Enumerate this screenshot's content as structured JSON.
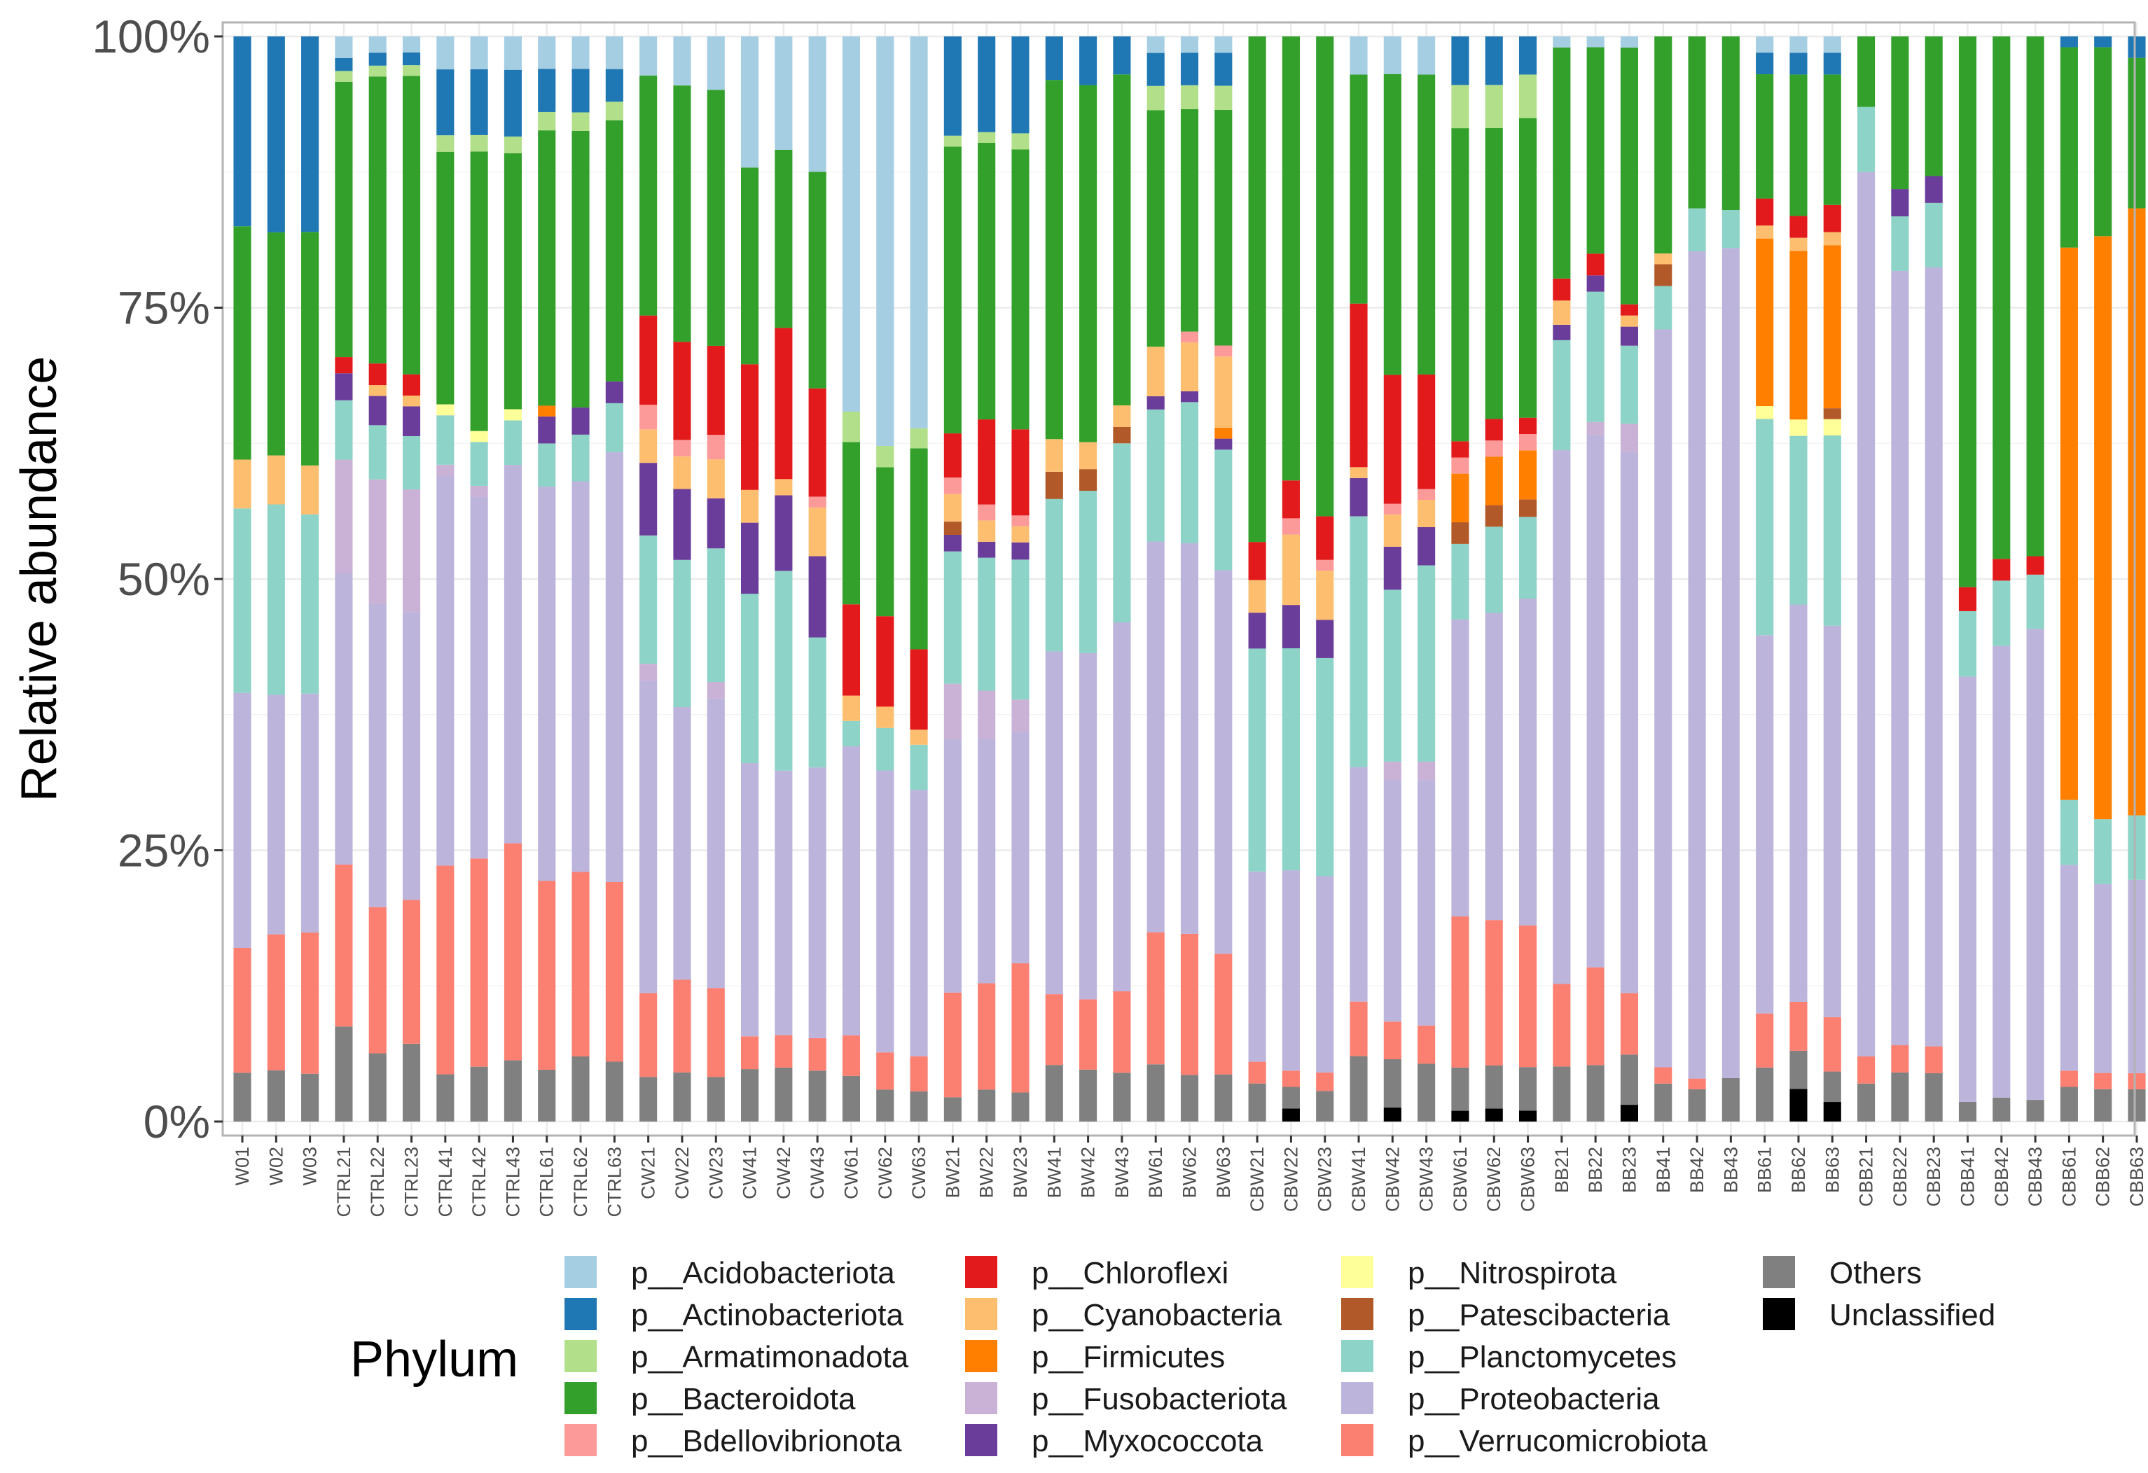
{
  "chart_data": {
    "type": "bar",
    "stacked": true,
    "title": "",
    "xlabel": "",
    "ylabel": "Relative abundance",
    "ylim": [
      0,
      1
    ],
    "yticks": [
      0,
      0.25,
      0.5,
      0.75,
      1.0
    ],
    "ytick_labels": [
      "0%",
      "25%",
      "50%",
      "75%",
      "100%"
    ],
    "legend_title": "Phylum",
    "legend_position": "bottom",
    "grid": true,
    "categories": [
      "W01",
      "W02",
      "W03",
      "CTRL21",
      "CTRL22",
      "CTRL23",
      "CTRL41",
      "CTRL42",
      "CTRL43",
      "CTRL61",
      "CTRL62",
      "CTRL63",
      "CW21",
      "CW22",
      "CW23",
      "CW41",
      "CW42",
      "CW43",
      "CW61",
      "CW62",
      "CW63",
      "BW21",
      "BW22",
      "BW23",
      "BW41",
      "BW42",
      "BW43",
      "BW61",
      "BW62",
      "BW63",
      "CBW21",
      "CBW22",
      "CBW23",
      "CBW41",
      "CBW42",
      "CBW43",
      "CBW61",
      "CBW62",
      "CBW63",
      "BB21",
      "BB22",
      "BB23",
      "BB41",
      "BB42",
      "BB43",
      "BB61",
      "BB62",
      "BB63",
      "CBB21",
      "CBB22",
      "CBB23",
      "CBB41",
      "CBB42",
      "CBB43",
      "CBB61",
      "CBB62",
      "CBB63"
    ],
    "stack_order": [
      "Unclassified",
      "Others",
      "p__Verrucomicrobiota",
      "p__Proteobacteria",
      "p__Fusobacteriota",
      "p__Planctomycetes",
      "p__Nitrospirota",
      "p__Myxococcota",
      "p__Patescibacteria",
      "p__Firmicutes",
      "p__Cyanobacteria",
      "p__Bdellovibrionota",
      "p__Chloroflexi",
      "p__Bacteroidota",
      "p__Armatimonadota",
      "p__Actinobacteriota",
      "p__Acidobacteriota"
    ],
    "series": [
      {
        "name": "p__Acidobacteriota",
        "color": "#a6cee3",
        "values": [
          0,
          0,
          0,
          0.02,
          0.015,
          0.015,
          0.03,
          0.03,
          0.03,
          0.03,
          0.03,
          0.03,
          0.035,
          0.045,
          0.048,
          0.12,
          0.105,
          0.125,
          0.37,
          0.385,
          0.39,
          0,
          0,
          0,
          0,
          0,
          0,
          0.015,
          0.015,
          0.015,
          0,
          0,
          0,
          0.035,
          0.035,
          0.035,
          0,
          0,
          0,
          0.01,
          0.01,
          0.01,
          0,
          0,
          0,
          0.015,
          0.015,
          0.015,
          0,
          0,
          0,
          0,
          0,
          0,
          0,
          0,
          0
        ]
      },
      {
        "name": "p__Actinobacteriota",
        "color": "#1f78b4",
        "values": [
          0.175,
          0.18,
          0.18,
          0.012,
          0.012,
          0.012,
          0.06,
          0.06,
          0.06,
          0.04,
          0.04,
          0.03,
          0,
          0,
          0,
          0,
          0,
          0,
          0,
          0,
          0,
          0.09,
          0.09,
          0.09,
          0.04,
          0.045,
          0.035,
          0.03,
          0.03,
          0.03,
          0,
          0,
          0,
          0,
          0,
          0,
          0.045,
          0.045,
          0.035,
          0,
          0,
          0,
          0,
          0,
          0,
          0.02,
          0.02,
          0.02,
          0,
          0,
          0,
          0,
          0,
          0,
          0.01,
          0.01,
          0.02
        ]
      },
      {
        "name": "p__Armatimonadota",
        "color": "#b2df8a",
        "values": [
          0,
          0,
          0,
          0.01,
          0.01,
          0.01,
          0.015,
          0.015,
          0.015,
          0.017,
          0.017,
          0.017,
          0,
          0,
          0,
          0,
          0,
          0,
          0.03,
          0.02,
          0.02,
          0.01,
          0.01,
          0.015,
          0,
          0,
          0,
          0.022,
          0.022,
          0.022,
          0,
          0,
          0,
          0,
          0,
          0,
          0.04,
          0.04,
          0.04,
          0,
          0,
          0,
          0,
          0,
          0,
          0,
          0,
          0,
          0,
          0,
          0,
          0,
          0,
          0,
          0,
          0,
          0
        ]
      },
      {
        "name": "p__Bacteroidota",
        "color": "#33a02c",
        "values": [
          0.215,
          0.205,
          0.215,
          0.255,
          0.265,
          0.28,
          0.23,
          0.255,
          0.23,
          0.255,
          0.255,
          0.24,
          0.215,
          0.235,
          0.23,
          0.18,
          0.165,
          0.2,
          0.16,
          0.14,
          0.2,
          0.26,
          0.26,
          0.26,
          0.33,
          0.33,
          0.305,
          0.215,
          0.205,
          0.215,
          0.465,
          0.41,
          0.44,
          0.21,
          0.28,
          0.275,
          0.29,
          0.27,
          0.275,
          0.21,
          0.19,
          0.23,
          0.2,
          0.16,
          0.16,
          0.115,
          0.13,
          0.12,
          0.065,
          0.14,
          0.13,
          0.505,
          0.48,
          0.48,
          0.185,
          0.175,
          0.14
        ]
      },
      {
        "name": "p__Bdellovibrionota",
        "color": "#fb9a99",
        "values": [
          0,
          0,
          0,
          0,
          0,
          0,
          0,
          0,
          0,
          0,
          0,
          0,
          0.022,
          0.015,
          0.022,
          0,
          0,
          0.01,
          0,
          0,
          0,
          0.015,
          0.015,
          0.01,
          0,
          0,
          0,
          0,
          0.01,
          0.01,
          0,
          0.015,
          0.01,
          0,
          0.01,
          0.01,
          0.015,
          0.015,
          0.015,
          0,
          0,
          0,
          0,
          0,
          0,
          0,
          0,
          0,
          0,
          0,
          0,
          0,
          0,
          0,
          0,
          0,
          0
        ]
      },
      {
        "name": "p__Chloroflexi",
        "color": "#e31a1c",
        "values": [
          0,
          0,
          0,
          0.015,
          0.02,
          0.02,
          0,
          0,
          0,
          0,
          0,
          0,
          0.08,
          0.09,
          0.08,
          0.115,
          0.14,
          0.1,
          0.09,
          0.085,
          0.08,
          0.04,
          0.08,
          0.08,
          0,
          0,
          0,
          0,
          0,
          0,
          0.035,
          0.035,
          0.04,
          0.15,
          0.12,
          0.105,
          0.015,
          0.02,
          0.015,
          0.02,
          0.02,
          0.01,
          0,
          0,
          0,
          0.025,
          0.02,
          0.025,
          0,
          0,
          0,
          0.022,
          0.02,
          0.017,
          0,
          0,
          0
        ]
      },
      {
        "name": "p__Cyanobacteria",
        "color": "#fdbf6f",
        "values": [
          0.045,
          0.045,
          0.045,
          0,
          0.01,
          0.01,
          0,
          0,
          0,
          0,
          0,
          0,
          0.03,
          0.03,
          0.035,
          0.03,
          0.015,
          0.045,
          0.025,
          0.02,
          0.015,
          0.025,
          0.02,
          0.015,
          0.03,
          0.025,
          0.02,
          0.045,
          0.045,
          0.065,
          0.03,
          0.065,
          0.045,
          0.01,
          0.03,
          0.025,
          0,
          0,
          0,
          0.022,
          0,
          0.01,
          0.01,
          0,
          0,
          0.012,
          0.012,
          0.012,
          0,
          0,
          0,
          0,
          0,
          0,
          0,
          0,
          0
        ]
      },
      {
        "name": "p__Firmicutes",
        "color": "#ff7f00",
        "values": [
          0,
          0,
          0,
          0,
          0,
          0,
          0,
          0,
          0,
          0.01,
          0,
          0,
          0,
          0,
          0,
          0,
          0,
          0,
          0,
          0,
          0,
          0,
          0,
          0,
          0,
          0,
          0,
          0,
          0,
          0.01,
          0,
          0,
          0,
          0,
          0,
          0,
          0.045,
          0.045,
          0.045,
          0,
          0,
          0,
          0,
          0,
          0,
          0.155,
          0.155,
          0.15,
          0,
          0,
          0,
          0,
          0,
          0,
          0.51,
          0.54,
          0.565
        ]
      },
      {
        "name": "p__Patescibacteria",
        "color": "#b15928",
        "values": [
          0,
          0,
          0,
          0,
          0,
          0,
          0,
          0,
          0,
          0,
          0,
          0,
          0,
          0,
          0,
          0,
          0,
          0,
          0,
          0,
          0,
          0.012,
          0,
          0,
          0.025,
          0.02,
          0.015,
          0,
          0,
          0,
          0,
          0,
          0,
          0,
          0,
          0,
          0.02,
          0.02,
          0.016,
          0,
          0,
          0,
          0.02,
          0,
          0,
          0,
          0,
          0.01,
          0,
          0,
          0,
          0,
          0,
          0,
          0,
          0,
          0
        ]
      },
      {
        "name": "p__Myxococcota",
        "color": "#6a3d9a",
        "values": [
          0,
          0,
          0,
          0.025,
          0.027,
          0.028,
          0,
          0,
          0,
          0.025,
          0.025,
          0.02,
          0.065,
          0.065,
          0.045,
          0.065,
          0.07,
          0.075,
          0,
          0,
          0,
          0.015,
          0.015,
          0.016,
          0,
          0,
          0,
          0.012,
          0.01,
          0.01,
          0.033,
          0.04,
          0.035,
          0.035,
          0.04,
          0.035,
          0,
          0,
          0,
          0.014,
          0.015,
          0.017,
          0,
          0,
          0,
          0,
          0,
          0,
          0,
          0.025,
          0.025,
          0,
          0,
          0,
          0,
          0,
          0
        ]
      },
      {
        "name": "p__Nitrospirota",
        "color": "#ffff99",
        "values": [
          0,
          0,
          0,
          0,
          0,
          0,
          0.01,
          0.01,
          0.01,
          0,
          0,
          0,
          0,
          0,
          0,
          0,
          0,
          0,
          0,
          0,
          0,
          0,
          0,
          0,
          0,
          0,
          0,
          0,
          0,
          0,
          0,
          0,
          0,
          0,
          0,
          0,
          0,
          0,
          0,
          0,
          0,
          0,
          0,
          0,
          0,
          0.012,
          0.015,
          0.015,
          0,
          0,
          0,
          0,
          0,
          0,
          0,
          0,
          0
        ]
      },
      {
        "name": "p__Planctomycetes",
        "color": "#8dd3c7",
        "values": [
          0.17,
          0.175,
          0.165,
          0.055,
          0.05,
          0.05,
          0.045,
          0.04,
          0.04,
          0.04,
          0.043,
          0.045,
          0.115,
          0.135,
          0.12,
          0.155,
          0.185,
          0.12,
          0.025,
          0.04,
          0.045,
          0.12,
          0.125,
          0.13,
          0.14,
          0.15,
          0.165,
          0.12,
          0.13,
          0.11,
          0.205,
          0.205,
          0.2,
          0.23,
          0.16,
          0.18,
          0.07,
          0.08,
          0.075,
          0.1,
          0.12,
          0.07,
          0.04,
          0.04,
          0.035,
          0.2,
          0.155,
          0.175,
          0.06,
          0.05,
          0.06,
          0.06,
          0.06,
          0.05,
          0.06,
          0.06,
          0.06
        ]
      },
      {
        "name": "p__Fusobacteriota",
        "color": "#cab2d6",
        "values": [
          0,
          0,
          0,
          0.105,
          0.115,
          0.115,
          0.01,
          0.01,
          0,
          0,
          0,
          0,
          0.015,
          0,
          0.015,
          0,
          0,
          0,
          0,
          0,
          0,
          0.05,
          0.045,
          0.03,
          0,
          0,
          0,
          0,
          0,
          0,
          0,
          0,
          0,
          0,
          0.017,
          0.017,
          0,
          0,
          0,
          0,
          0.012,
          0.025,
          0,
          0,
          0,
          0,
          0,
          0,
          0,
          0,
          0,
          0,
          0,
          0,
          0,
          0,
          0
        ]
      },
      {
        "name": "p__Proteobacteria",
        "color": "#bcb4db",
        "values": [
          0.235,
          0.22,
          0.22,
          0.27,
          0.28,
          0.27,
          0.355,
          0.33,
          0.34,
          0.365,
          0.36,
          0.395,
          0.28,
          0.25,
          0.26,
          0.25,
          0.245,
          0.25,
          0.285,
          0.265,
          0.265,
          0.23,
          0.23,
          0.215,
          0.315,
          0.32,
          0.34,
          0.355,
          0.36,
          0.35,
          0.175,
          0.185,
          0.18,
          0.215,
          0.225,
          0.225,
          0.275,
          0.285,
          0.3,
          0.485,
          0.49,
          0.485,
          0.68,
          0.77,
          0.765,
          0.35,
          0.365,
          0.36,
          0.815,
          0.71,
          0.725,
          0.39,
          0.415,
          0.435,
          0.19,
          0.175,
          0.18
        ]
      },
      {
        "name": "p__Verrucomicrobiota",
        "color": "#fb8072",
        "values": [
          0.115,
          0.125,
          0.13,
          0.15,
          0.135,
          0.135,
          0.19,
          0.19,
          0.195,
          0.175,
          0.17,
          0.165,
          0.075,
          0.085,
          0.08,
          0.03,
          0.03,
          0.03,
          0.04,
          0.035,
          0.035,
          0.095,
          0.1,
          0.12,
          0.065,
          0.065,
          0.075,
          0.12,
          0.13,
          0.11,
          0.02,
          0.015,
          0.017,
          0.05,
          0.035,
          0.035,
          0.14,
          0.135,
          0.13,
          0.075,
          0.09,
          0.055,
          0.015,
          0.01,
          0,
          0.05,
          0.045,
          0.05,
          0.025,
          0.025,
          0.025,
          0,
          0,
          0,
          0.015,
          0.015,
          0.015
        ]
      },
      {
        "name": "Others",
        "color": "#808080",
        "values": [
          0.045,
          0.047,
          0.044,
          0.088,
          0.063,
          0.073,
          0.043,
          0.05,
          0.055,
          0.048,
          0.06,
          0.055,
          0.04,
          0.045,
          0.04,
          0.048,
          0.05,
          0.047,
          0.045,
          0.03,
          0.03,
          0.022,
          0.03,
          0.027,
          0.052,
          0.048,
          0.045,
          0.052,
          0.043,
          0.043,
          0.035,
          0.02,
          0.028,
          0.06,
          0.045,
          0.053,
          0.04,
          0.04,
          0.04,
          0.05,
          0.052,
          0.045,
          0.035,
          0.03,
          0.04,
          0.05,
          0.035,
          0.028,
          0.035,
          0.045,
          0.045,
          0.018,
          0.022,
          0.02,
          0.032,
          0.03,
          0.03
        ]
      },
      {
        "name": "Unclassified",
        "color": "#000000",
        "values": [
          0,
          0,
          0,
          0,
          0,
          0,
          0,
          0,
          0,
          0,
          0,
          0,
          0,
          0,
          0,
          0,
          0,
          0,
          0,
          0,
          0,
          0,
          0,
          0,
          0,
          0,
          0,
          0,
          0,
          0,
          0,
          0.012,
          0,
          0,
          0.013,
          0,
          0.01,
          0.012,
          0.01,
          0,
          0,
          0.015,
          0,
          0,
          0,
          0,
          0.03,
          0.018,
          0,
          0,
          0,
          0,
          0,
          0,
          0,
          0,
          0
        ]
      }
    ]
  }
}
